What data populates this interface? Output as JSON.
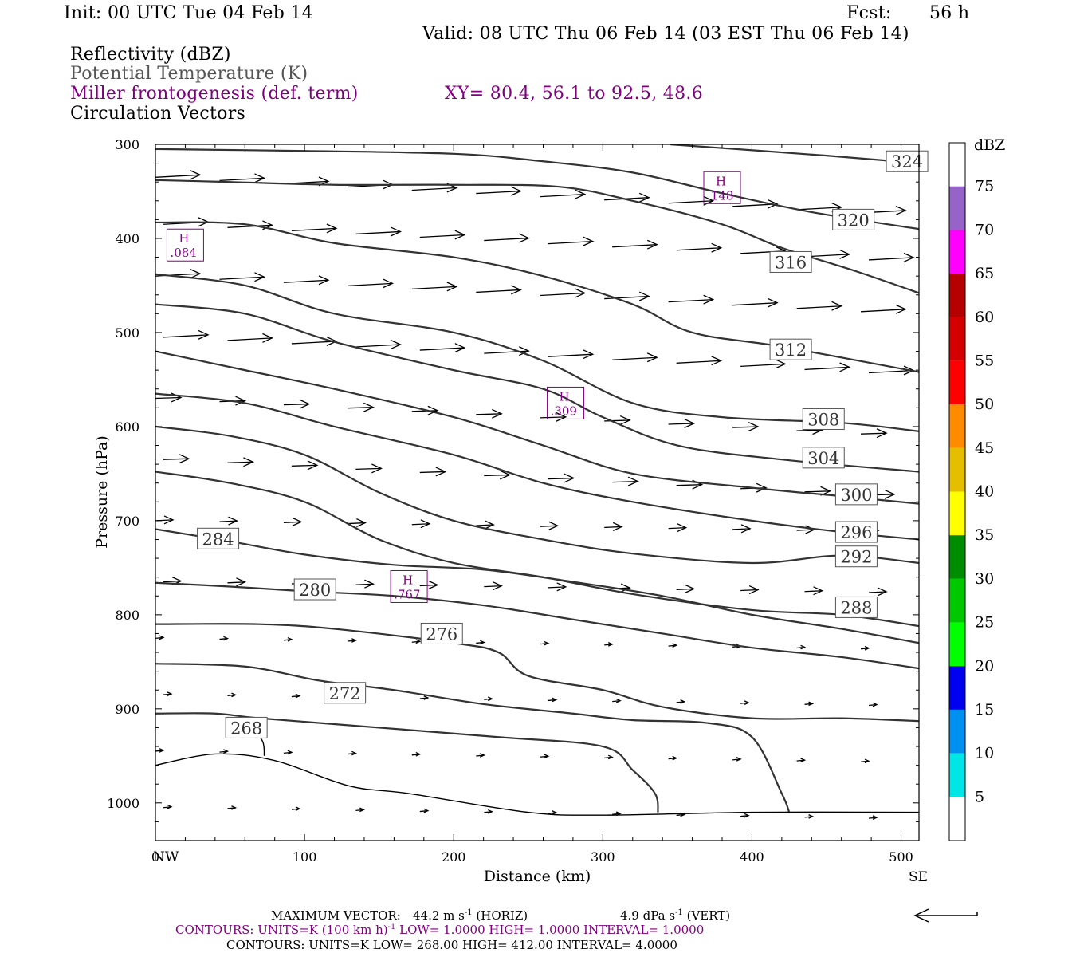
{
  "header": {
    "init": "Init: 00 UTC Tue 04 Feb 14",
    "fcst_label": "Fcst:",
    "fcst_value": "56 h",
    "valid": "Valid: 08 UTC Thu 06 Feb 14 (03 EST Thu 06 Feb 14)"
  },
  "fields": {
    "reflectivity": "Reflectivity (dBZ)",
    "theta": "Potential Temperature (K)",
    "frontogenesis": "Miller frontogenesis (def. term)",
    "xy": "XY=  80.4, 56.1 to  92.5, 48.6",
    "vectors": "Circulation Vectors"
  },
  "colors": {
    "contour": "#333333",
    "purple": "#800080"
  },
  "chart_data": {
    "type": "line",
    "xlabel": "Distance (km)",
    "ylabel": "Pressure (hPa)",
    "xlim": [
      0,
      512
    ],
    "ylim": [
      1040,
      300
    ],
    "y_scale": "linear, inverted",
    "x_ticks": [
      0,
      100,
      200,
      300,
      400,
      500
    ],
    "x_tick_labels": [
      "0",
      "100",
      "200",
      "300",
      "400",
      "500"
    ],
    "y_ticks": [
      300,
      400,
      500,
      600,
      700,
      800,
      900,
      1000
    ],
    "y_tick_labels": [
      "300",
      "400",
      "500",
      "600",
      "700",
      "800",
      "900",
      "1000"
    ],
    "left_end_label": "NW",
    "right_end_label": "SE",
    "theta_contours": [
      {
        "label": "324",
        "points": [
          [
            345,
            300
          ],
          [
            450,
            312
          ],
          [
            512,
            320
          ]
        ],
        "label_at": [
          504,
          318
        ]
      },
      {
        "label": "320",
        "points": [
          [
            0,
            305
          ],
          [
            100,
            307
          ],
          [
            200,
            310
          ],
          [
            260,
            318
          ],
          [
            320,
            330
          ],
          [
            380,
            352
          ],
          [
            440,
            372
          ],
          [
            512,
            390
          ]
        ],
        "label_at": [
          468,
          380
        ]
      },
      {
        "label": "316",
        "points": [
          [
            0,
            338
          ],
          [
            50,
            340
          ],
          [
            120,
            343
          ],
          [
            200,
            343
          ],
          [
            270,
            345
          ],
          [
            320,
            360
          ],
          [
            380,
            385
          ],
          [
            420,
            410
          ],
          [
            470,
            435
          ],
          [
            512,
            458
          ]
        ],
        "label_at": [
          426,
          425
        ]
      },
      {
        "label": "312",
        "points": [
          [
            0,
            383
          ],
          [
            60,
            385
          ],
          [
            120,
            405
          ],
          [
            200,
            420
          ],
          [
            260,
            440
          ],
          [
            320,
            470
          ],
          [
            360,
            500
          ],
          [
            420,
            515
          ],
          [
            512,
            542
          ]
        ],
        "label_at": [
          426,
          518
        ]
      },
      {
        "label": "308",
        "points": [
          [
            0,
            438
          ],
          [
            60,
            450
          ],
          [
            120,
            480
          ],
          [
            200,
            500
          ],
          [
            260,
            530
          ],
          [
            320,
            575
          ],
          [
            380,
            590
          ],
          [
            460,
            596
          ],
          [
            512,
            605
          ]
        ],
        "label_at": [
          448,
          592
        ]
      },
      {
        "label": "304",
        "points": [
          [
            0,
            470
          ],
          [
            60,
            480
          ],
          [
            120,
            510
          ],
          [
            200,
            540
          ],
          [
            260,
            560
          ],
          [
            300,
            590
          ],
          [
            350,
            620
          ],
          [
            420,
            635
          ],
          [
            512,
            648
          ]
        ],
        "label_at": [
          448,
          633
        ]
      },
      {
        "label": "300",
        "points": [
          [
            0,
            520
          ],
          [
            60,
            540
          ],
          [
            120,
            560
          ],
          [
            200,
            590
          ],
          [
            260,
            620
          ],
          [
            320,
            650
          ],
          [
            400,
            665
          ],
          [
            460,
            674
          ],
          [
            512,
            682
          ]
        ],
        "label_at": [
          470,
          672
        ]
      },
      {
        "label": "296",
        "points": [
          [
            0,
            565
          ],
          [
            60,
            575
          ],
          [
            120,
            600
          ],
          [
            200,
            630
          ],
          [
            260,
            660
          ],
          [
            320,
            680
          ],
          [
            400,
            700
          ],
          [
            460,
            712
          ],
          [
            512,
            720
          ]
        ],
        "label_at": [
          470,
          712
        ]
      },
      {
        "label": "292",
        "points": [
          [
            0,
            600
          ],
          [
            50,
            610
          ],
          [
            100,
            630
          ],
          [
            150,
            670
          ],
          [
            200,
            700
          ],
          [
            260,
            720
          ],
          [
            320,
            735
          ],
          [
            400,
            745
          ],
          [
            460,
            737
          ],
          [
            512,
            745
          ]
        ],
        "label_at": [
          470,
          738
        ]
      },
      {
        "label": "288",
        "points": [
          [
            0,
            648
          ],
          [
            50,
            660
          ],
          [
            100,
            680
          ],
          [
            150,
            720
          ],
          [
            200,
            745
          ],
          [
            260,
            760
          ],
          [
            320,
            778
          ],
          [
            400,
            795
          ],
          [
            460,
            800
          ],
          [
            512,
            812
          ]
        ],
        "label_at": [
          470,
          792
        ]
      },
      {
        "label": "284",
        "points": [
          [
            0,
            709
          ],
          [
            50,
            722
          ],
          [
            100,
            736
          ],
          [
            160,
            747
          ],
          [
            220,
            752
          ],
          [
            280,
            765
          ],
          [
            340,
            780
          ],
          [
            400,
            800
          ],
          [
            460,
            815
          ],
          [
            512,
            830
          ]
        ],
        "label_at": [
          42,
          719
        ]
      },
      {
        "label": "280",
        "points": [
          [
            0,
            766
          ],
          [
            50,
            770
          ],
          [
            100,
            775
          ],
          [
            160,
            780
          ],
          [
            220,
            790
          ],
          [
            280,
            805
          ],
          [
            340,
            820
          ],
          [
            400,
            835
          ],
          [
            460,
            845
          ],
          [
            512,
            857
          ]
        ],
        "label_at": [
          107,
          773
        ]
      },
      {
        "label": "276",
        "points": [
          [
            0,
            810
          ],
          [
            70,
            810
          ],
          [
            120,
            815
          ],
          [
            200,
            830
          ],
          [
            230,
            840
          ],
          [
            250,
            865
          ],
          [
            300,
            880
          ],
          [
            340,
            898
          ],
          [
            400,
            910
          ],
          [
            460,
            910
          ],
          [
            512,
            913
          ]
        ],
        "label_at": [
          192,
          820
        ]
      },
      {
        "label": "272",
        "points": [
          [
            0,
            852
          ],
          [
            60,
            855
          ],
          [
            110,
            870
          ],
          [
            160,
            880
          ],
          [
            220,
            895
          ],
          [
            280,
            905
          ],
          [
            320,
            912
          ],
          [
            370,
            915
          ],
          [
            400,
            930
          ],
          [
            420,
            990
          ],
          [
            425,
            1010
          ]
        ],
        "label_at": [
          127,
          883
        ]
      },
      {
        "label": "268",
        "points": [
          [
            0,
            905
          ],
          [
            40,
            905
          ],
          [
            70,
            910
          ],
          [
            150,
            920
          ],
          [
            230,
            930
          ],
          [
            300,
            940
          ],
          [
            320,
            965
          ],
          [
            335,
            990
          ],
          [
            337,
            1010
          ]
        ],
        "label_at": [
          61,
          920
        ]
      },
      {
        "label": "",
        "points": [
          [
            65,
            920
          ],
          [
            72,
            935
          ],
          [
            73,
            950
          ]
        ],
        "label_at": null
      },
      {
        "label": "",
        "points": [
          [
            0,
            960
          ],
          [
            40,
            948
          ],
          [
            80,
            955
          ],
          [
            130,
            982
          ],
          [
            170,
            990
          ],
          [
            250,
            1010
          ],
          [
            300,
            1013
          ],
          [
            400,
            1010
          ],
          [
            512,
            1010
          ]
        ],
        "label_at": null
      }
    ],
    "frontogenesis_maxima": [
      {
        "letter": "H",
        "value": ".084",
        "x": 20,
        "y": 407
      },
      {
        "letter": "H",
        "value": ".148",
        "x": 380,
        "y": 346
      },
      {
        "letter": "H",
        "value": ".309",
        "x": 275,
        "y": 575
      },
      {
        "letter": "H",
        "value": ".767",
        "x": 170,
        "y": 770
      }
    ]
  },
  "colorbar": {
    "title": "dBZ",
    "labels": [
      "5",
      "10",
      "15",
      "20",
      "25",
      "30",
      "35",
      "40",
      "45",
      "50",
      "55",
      "60",
      "65",
      "70",
      "75"
    ],
    "colors": [
      "#ffffff",
      "#00e5e5",
      "#0090f0",
      "#0000f0",
      "#00ff00",
      "#00c800",
      "#008c00",
      "#ffff00",
      "#e6be00",
      "#ff8c00",
      "#ff0000",
      "#d40000",
      "#b40000",
      "#ff00ff",
      "#9664c8",
      "#ffffff"
    ]
  },
  "footer": {
    "max_vector_prefix": "MAXIMUM VECTOR:",
    "max_vector_horiz_val": "44.2 m s",
    "max_vector_horiz_sup": "-1",
    "max_vector_horiz_tag": "(HORIZ)",
    "max_vector_vert_val": "4.9 dPa s",
    "max_vector_vert_sup": "-1",
    "max_vector_vert_tag": "(VERT)",
    "contours1_a": "CONTOURS:  UNITS=K (100 km h)",
    "contours1_sup": "-1",
    "contours1_b": "  LOW=   1.0000       HIGH=   1.0000       INTERVAL=    1.0000",
    "contours2": "CONTOURS:  UNITS=K  LOW=  268.00        HIGH=  412.00        INTERVAL=    4.0000"
  }
}
